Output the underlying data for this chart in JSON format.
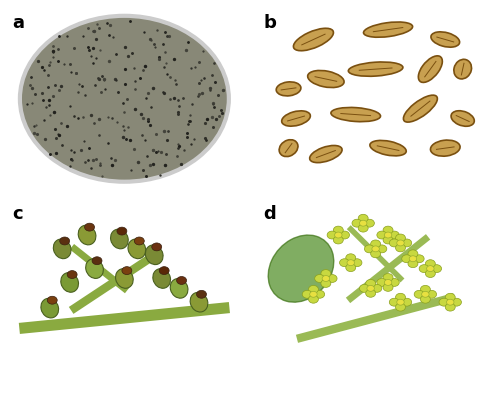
{
  "figsize": [
    5.0,
    3.97
  ],
  "dpi": 100,
  "panel_labels": [
    "a",
    "b",
    "c",
    "d"
  ],
  "label_color": "black",
  "label_fontsize": 13,
  "label_fontweight": "bold",
  "border_color": "#888888",
  "panel_colors": {
    "a": "#5b9bd5",
    "b": "#d4d48a",
    "c": "#6a8f3a",
    "d": "#7aaa45"
  },
  "petri_color": "#888877",
  "petri_edge": "#cccccc",
  "conidial_bg": "#c8c87a",
  "conidial_fg": "#8B6914",
  "inflo_c_bg": "#6a7a3a",
  "inflo_d_bg": "#7aaa45"
}
